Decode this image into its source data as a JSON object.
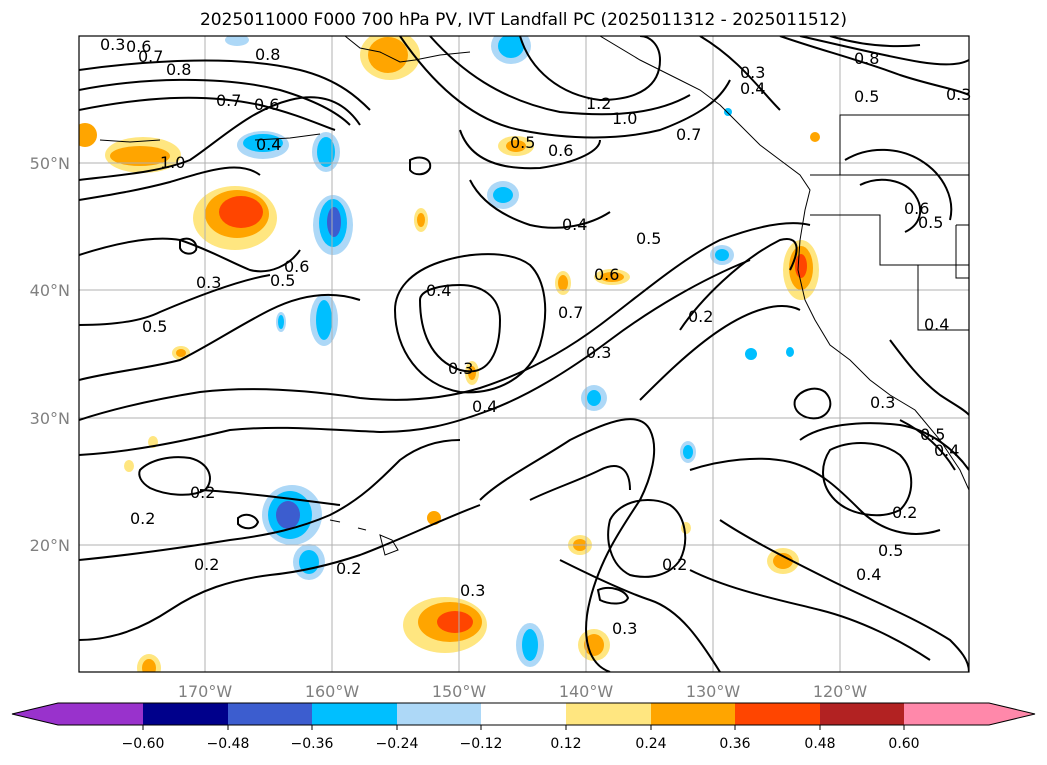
{
  "title": "2025011000 F000 700 hPa PV, IVT Landfall PC (2025011312 - 2025011512)",
  "axes": {
    "lat_labels": [
      "50°N",
      "40°N",
      "30°N",
      "20°N"
    ],
    "lon_labels": [
      "170°W",
      "160°W",
      "150°W",
      "140°W",
      "130°W",
      "120°W"
    ]
  },
  "contour_labels": [
    "0.3",
    "0.6",
    "0.7",
    "0.8",
    "0.8",
    "0.7",
    "0.6",
    "0.4",
    "1.0",
    "1.2",
    "1.0",
    "0.5",
    "0.6",
    "0.7",
    "0.3",
    "0.4",
    "0.8",
    "0.5",
    "0.3",
    "0.6",
    "0.5",
    "0.4",
    "0.5",
    "0.6",
    "0.3",
    "0.5",
    "0.4",
    "0.6",
    "0.7",
    "0.4",
    "0.3",
    "0.2",
    "0.3",
    "0.4",
    "0.5",
    "0.5",
    "0.4",
    "0.3",
    "0.2",
    "0.2",
    "0.2",
    "0.3",
    "0.2",
    "0.3",
    "0.2",
    "0.4",
    "0.5",
    "0.2"
  ],
  "colorbar": {
    "tick_labels": [
      "−0.60",
      "−0.48",
      "−0.36",
      "−0.24",
      "−0.12",
      "0.12",
      "0.24",
      "0.36",
      "0.48",
      "0.60"
    ],
    "colors": [
      "#9932cc",
      "#00008b",
      "#3c5dcf",
      "#00bfff",
      "#add8f7",
      "#ffffff",
      "#ffe680",
      "#ffa500",
      "#ff4500",
      "#b22222",
      "#ff88aa"
    ]
  },
  "anomaly_colors": {
    "positive_low": "#ffe680",
    "positive_mid": "#ffa500",
    "positive_high": "#ff4500",
    "negative_low": "#add8f7",
    "negative_mid": "#00bfff",
    "negative_high": "#3c5dcf"
  }
}
